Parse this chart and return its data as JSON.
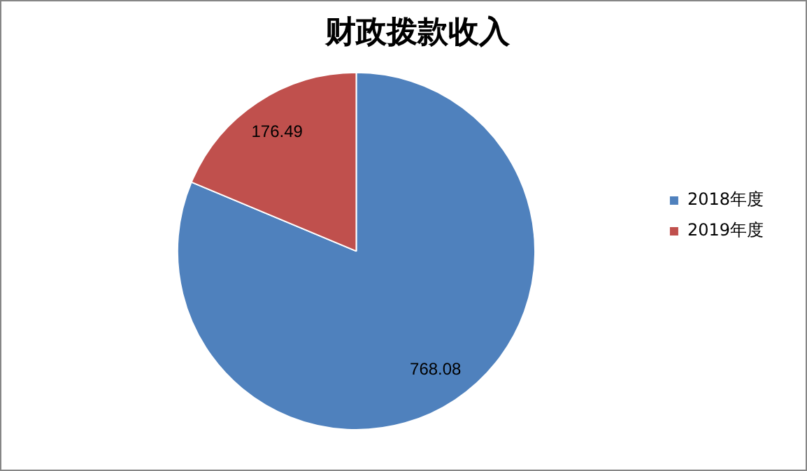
{
  "chart_data": {
    "type": "pie",
    "title": "财政拨款收入",
    "categories": [
      "2018年度",
      "2019年度"
    ],
    "values": [
      768.08,
      176.49
    ],
    "colors": [
      "#4f81bd",
      "#c0504d"
    ],
    "data_labels": true,
    "legend": "right"
  }
}
